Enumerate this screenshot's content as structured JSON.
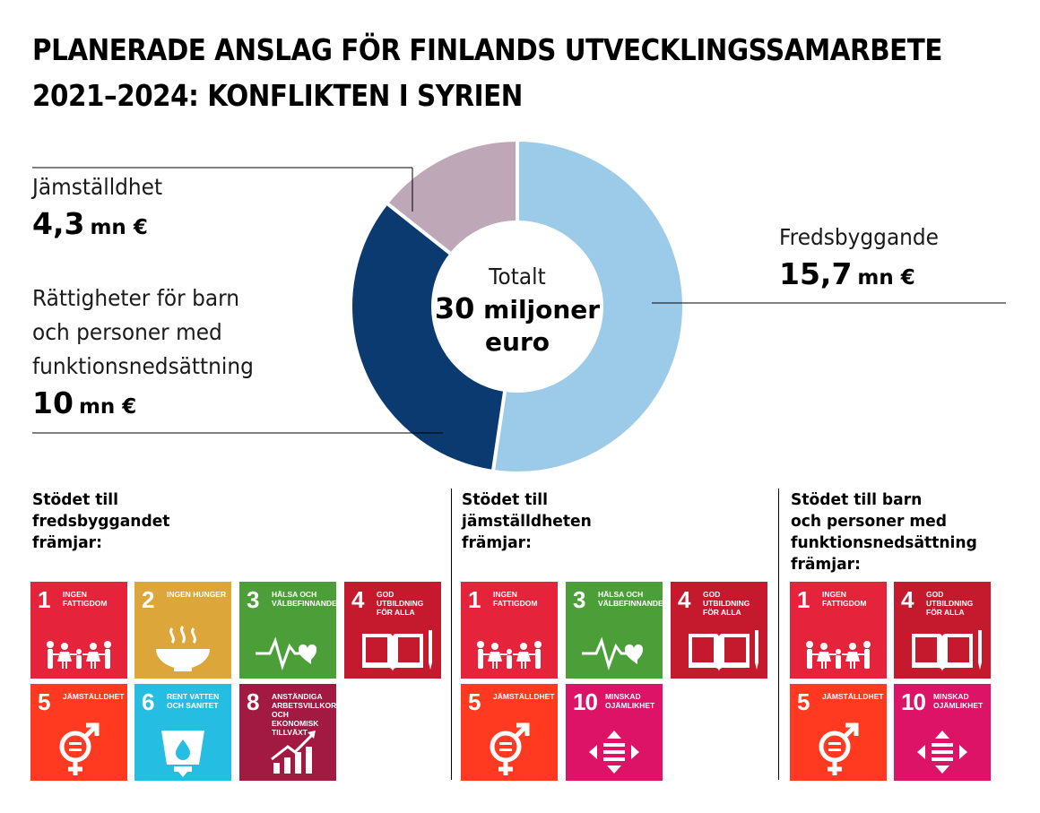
{
  "title": {
    "line1": "PLANERADE ANSLAG FÖR FINLANDS UTVECKLINGSSAMARBETE",
    "line2": "2021–2024: KONFLIKTEN I SYRIEN"
  },
  "center": {
    "label": "Totalt",
    "value_num": "30",
    "value_word": "miljoner",
    "value_unit": "euro"
  },
  "labels": {
    "gender": {
      "name": "Jämställdhet",
      "value": "4,3",
      "unit": "mn €"
    },
    "children": {
      "name_lines": [
        "Rättigheter för barn",
        "och personer med",
        "funktionsnedsättning"
      ],
      "value": "10",
      "unit": "mn €"
    },
    "peace": {
      "name": "Fredsbyggande",
      "value": "15,7",
      "unit": "mn €"
    }
  },
  "chart_data": {
    "type": "pie",
    "title": "Planerade anslag för Finlands utvecklingssamarbete 2021–2024: konflikten i Syrien",
    "total": 30,
    "unit": "mn €",
    "slices": [
      {
        "name": "Fredsbyggande",
        "value": 15.7,
        "color": "#9ccbea"
      },
      {
        "name": "Rättigheter för barn och personer med funktionsnedsättning",
        "value": 10,
        "color": "#0b3a70"
      },
      {
        "name": "Jämställdhet",
        "value": 4.3,
        "color": "#bea7b7"
      }
    ]
  },
  "columns": [
    {
      "heading": [
        "Stödet till",
        "fredsbyggandet",
        "främjar:"
      ],
      "goals": [
        1,
        2,
        3,
        4,
        5,
        6,
        8
      ]
    },
    {
      "heading": [
        "Stödet till",
        "jämställdheten",
        "främjar:"
      ],
      "goals": [
        1,
        3,
        4,
        5,
        10
      ]
    },
    {
      "heading": [
        "Stödet till barn",
        "och personer med",
        "funktionsnedsättning",
        "främjar:"
      ],
      "goals": [
        1,
        4,
        5,
        10
      ]
    }
  ],
  "sdg": {
    "1": {
      "num": "1",
      "label": "Ingen fattigdom",
      "color": "#e5243b",
      "icon": "family-icon"
    },
    "2": {
      "num": "2",
      "label": "Ingen hunger",
      "color": "#dda63a",
      "icon": "bowl-icon"
    },
    "3": {
      "num": "3",
      "label": "Hälsa och välbefinnande",
      "color": "#4c9f38",
      "icon": "heartbeat-icon"
    },
    "4": {
      "num": "4",
      "label": "God utbildning för alla",
      "color": "#c5192d",
      "icon": "book-icon"
    },
    "5": {
      "num": "5",
      "label": "Jämställdhet",
      "color": "#ff3a21",
      "icon": "gender-equality-icon"
    },
    "6": {
      "num": "6",
      "label": "Rent vatten och sanitet",
      "color": "#26bde2",
      "icon": "water-glass-icon"
    },
    "8": {
      "num": "8",
      "label": "Anständiga arbetsvillkor och ekonomisk tillväxt",
      "color": "#a21942",
      "icon": "growth-chart-icon"
    },
    "10": {
      "num": "10",
      "label": "Minskad ojämlikhet",
      "color": "#dd1367",
      "icon": "equality-arrows-icon"
    }
  }
}
